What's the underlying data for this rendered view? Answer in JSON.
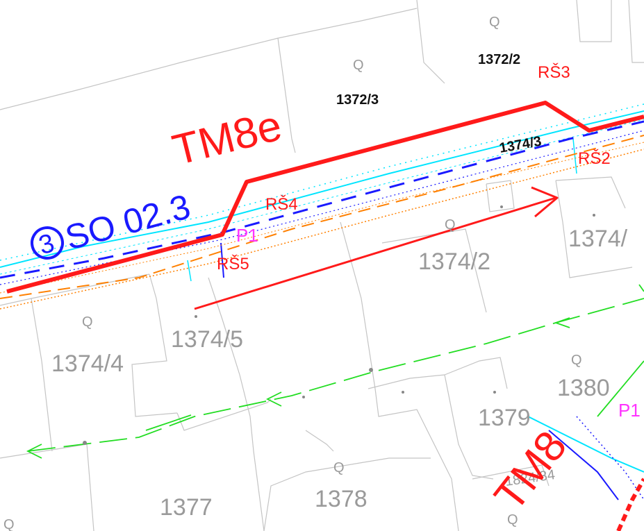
{
  "parcels": {
    "p1372_2": "1372/2",
    "p1372_3": "1372/3",
    "p1374_3": "1374/3",
    "p1374_2": "1374/2",
    "p1374_edge": "1374/",
    "p1374_5": "1374/5",
    "p1374_4": "1374/4",
    "p1380": "1380",
    "p1379": "1379",
    "p1377": "1377",
    "p1378": "1378",
    "p1824": "1824/34",
    "q_marker": "Q"
  },
  "labels": {
    "tm8e": "TM8e",
    "tm8": "TM8",
    "so": "SO 02.3",
    "so_num": "3",
    "rs2": "RŠ2",
    "rs3": "RŠ3",
    "rs4": "RŠ4",
    "rs5": "RŠ5",
    "p1": "P1",
    "p1_right": "P1"
  },
  "colors": {
    "pipe_red": "#ff1a1a",
    "water_blue": "#1a1aff",
    "cyan": "#00e5ff",
    "orange": "#ff8000",
    "green": "#22dd22",
    "magenta": "#ff33ff",
    "parcel_line": "#bdbdbd"
  }
}
